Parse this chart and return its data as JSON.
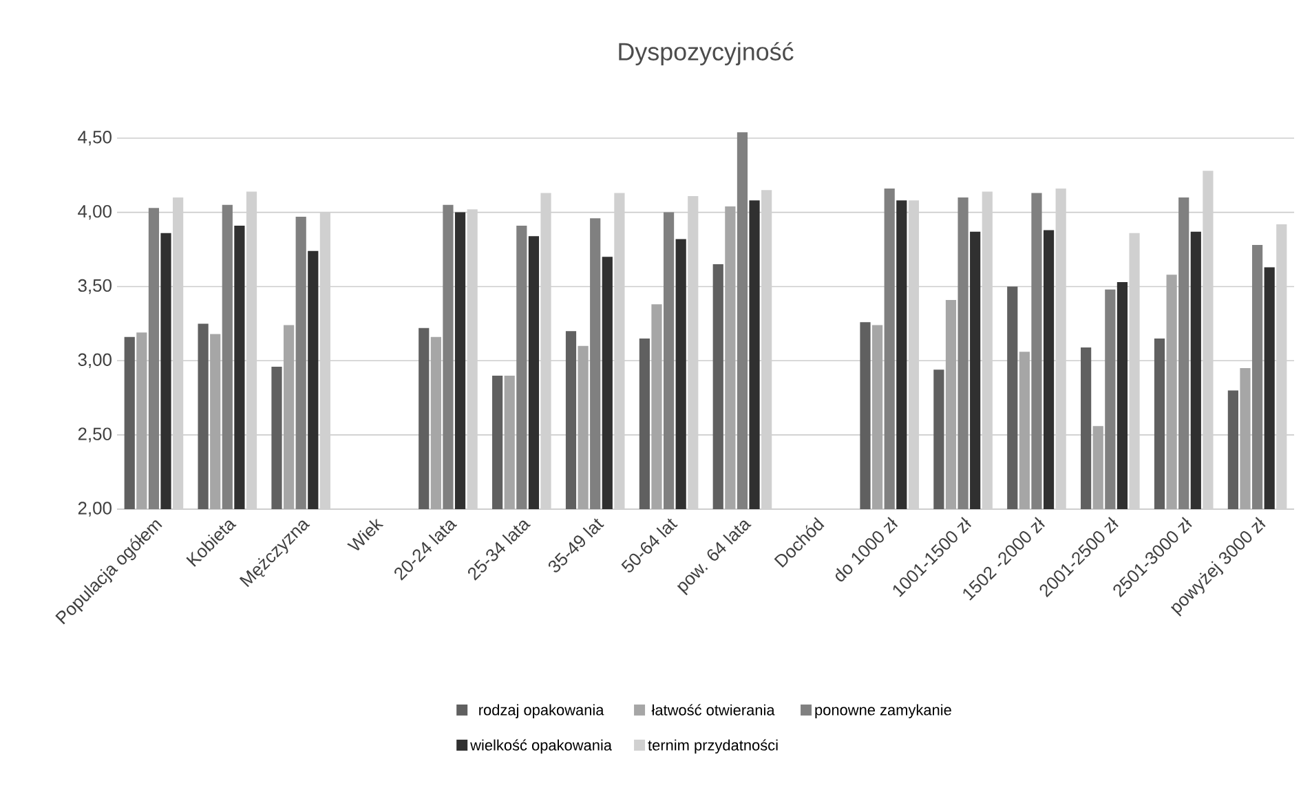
{
  "chart_data": {
    "type": "bar",
    "title": "Dyspozycyjność",
    "categories": [
      "Populacja ogółem",
      "Kobieta",
      "Mężczyzna",
      "Wiek",
      "20-24 lata",
      "25-34 lata",
      "35-49 lat",
      "50-64 lat",
      "pow. 64 lata",
      "Dochód",
      "do 1000 zł",
      "1001-1500  zł",
      "1502 -2000 zł",
      "2001-2500  zł",
      "2501-3000 zł",
      "powyżej 3000 zł"
    ],
    "series": [
      {
        "name": "rodzaj opakowania",
        "color": "#606060",
        "values": [
          3.16,
          3.25,
          2.96,
          null,
          3.22,
          2.9,
          3.2,
          3.15,
          3.65,
          null,
          3.26,
          2.94,
          3.5,
          3.09,
          3.15,
          2.8
        ]
      },
      {
        "name": "łatwość otwierania",
        "color": "#a6a6a6",
        "values": [
          3.19,
          3.18,
          3.24,
          null,
          3.16,
          2.9,
          3.1,
          3.38,
          4.04,
          null,
          3.24,
          3.41,
          3.06,
          2.56,
          3.58,
          2.95
        ]
      },
      {
        "name": "ponowne zamykanie",
        "color": "#808080",
        "values": [
          4.03,
          4.05,
          3.97,
          null,
          4.05,
          3.91,
          3.96,
          4.0,
          4.54,
          null,
          4.16,
          4.1,
          4.13,
          3.48,
          4.1,
          3.78
        ]
      },
      {
        "name": "wielkość opakowania",
        "color": "#303030",
        "values": [
          3.86,
          3.91,
          3.74,
          null,
          4.0,
          3.84,
          3.7,
          3.82,
          4.08,
          null,
          4.08,
          3.87,
          3.88,
          3.53,
          3.87,
          3.63
        ]
      },
      {
        "name": "ternim przydatności",
        "color": "#d0d0d0",
        "values": [
          4.1,
          4.14,
          4.0,
          null,
          4.02,
          4.13,
          4.13,
          4.11,
          4.15,
          null,
          4.08,
          4.14,
          4.16,
          3.86,
          4.28,
          3.92
        ]
      }
    ],
    "ylim": [
      2,
      4.55
    ],
    "yticks": [
      {
        "value": 2,
        "label": "2,00"
      },
      {
        "value": 2.5,
        "label": "2,50"
      },
      {
        "value": 3,
        "label": "3,00"
      },
      {
        "value": 3.5,
        "label": "3,50"
      },
      {
        "value": 4,
        "label": "4,00"
      },
      {
        "value": 4.5,
        "label": "4,50"
      }
    ],
    "grid": "y",
    "legend": "bottom"
  }
}
